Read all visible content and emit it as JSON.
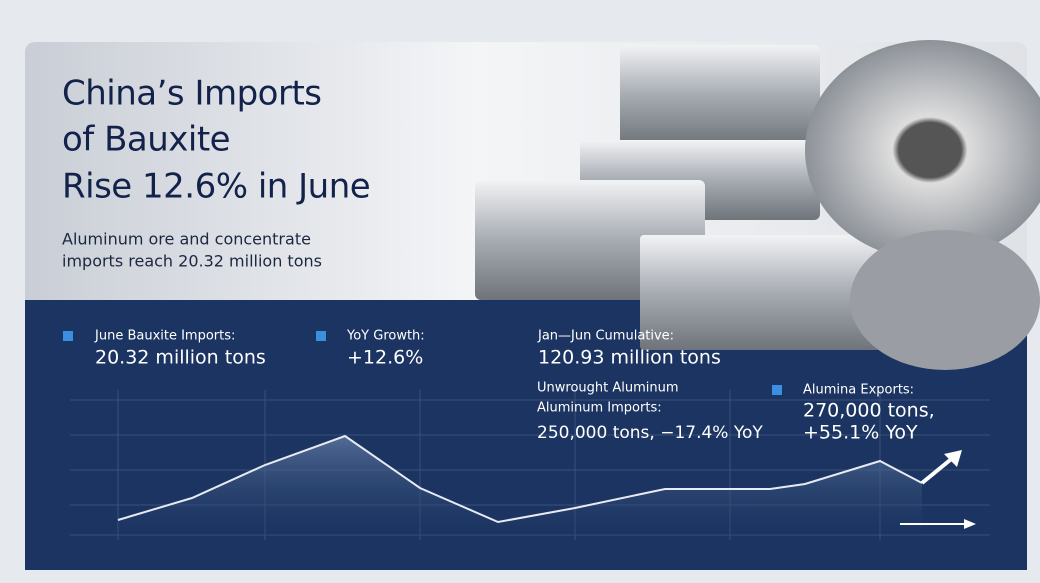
{
  "header": {
    "title_lines": [
      "China’s Imports",
      "of Bauxite",
      "Rise 12.6% in June"
    ],
    "subtitle_lines": [
      "Aluminum ore and concentrate",
      "imports reach 20.32 million tons"
    ]
  },
  "stats": [
    {
      "label": "June Bauxite Imports:",
      "value": "20.32 million tons"
    },
    {
      "label": "YoY Growth:",
      "value": "+12.6%"
    },
    {
      "label": "Jan—Jun Cumulative:",
      "value": "120.93 million tons"
    },
    {
      "label_lines": [
        "Unwrought Aluminum",
        "Aluminum Imports:"
      ],
      "value": "250,000 tons, −17.4% YoY"
    },
    {
      "label": "Alumina Exports:",
      "value_lines": [
        "270,000 tons,",
        "+55.1% YoY"
      ]
    }
  ]
}
